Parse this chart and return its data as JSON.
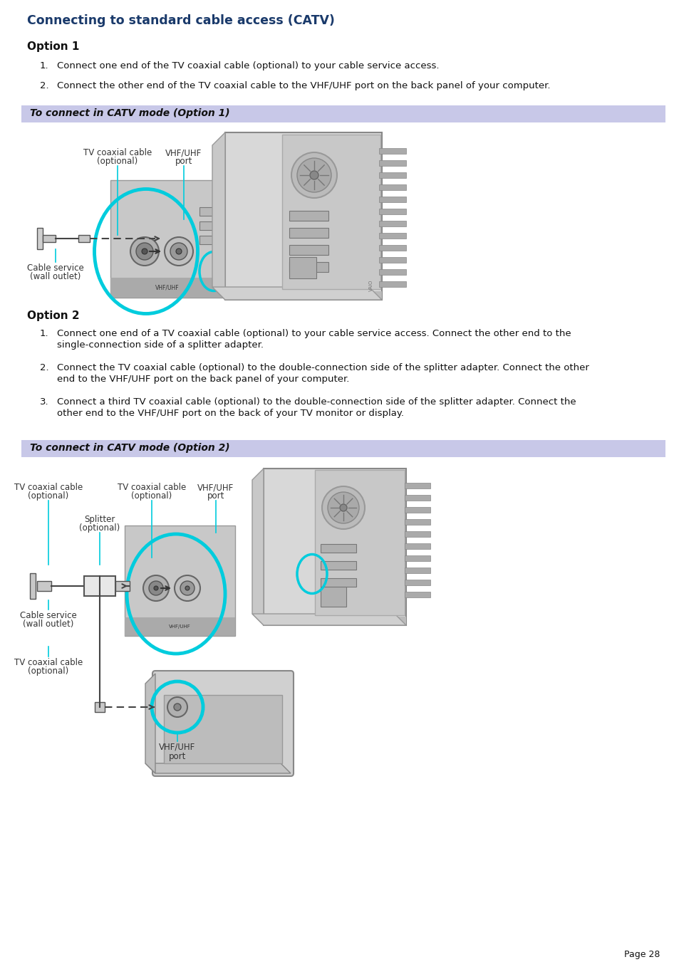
{
  "title": "Connecting to standard cable access (CATV)",
  "title_color": "#1a3a6b",
  "bg_color": "#ffffff",
  "option1_header": "Option 1",
  "option1_item1": "Connect one end of the TV coaxial cable (optional) to your cable service access.",
  "option1_item2": "Connect the other end of the TV coaxial cable to the VHF/UHF port on the back panel of your computer.",
  "banner1_text": "To connect in CATV mode (Option 1)",
  "banner_bg": "#c8c8e8",
  "option2_header": "Option 2",
  "option2_item1_l1": "Connect one end of a TV coaxial cable (optional) to your cable service access. Connect the other end to the",
  "option2_item1_l2": "single-connection side of a splitter adapter.",
  "option2_item2_l1": "Connect the TV coaxial cable (optional) to the double-connection side of the splitter adapter. Connect the other",
  "option2_item2_l2": "end to the VHF/UHF port on the back panel of your computer.",
  "option2_item3_l1": "Connect a third TV coaxial cable (optional) to the double-connection side of the splitter adapter. Connect the",
  "option2_item3_l2": "other end to the VHF/UHF port on the back of your TV monitor or display.",
  "banner2_text": "To connect in CATV mode (Option 2)",
  "page_text": "Page 28",
  "cyan": "#00ccdd",
  "gray_light": "#d8d8d8",
  "gray_mid": "#b0b0b0",
  "gray_dark": "#888888",
  "body_color": "#111111",
  "label_color": "#333333"
}
